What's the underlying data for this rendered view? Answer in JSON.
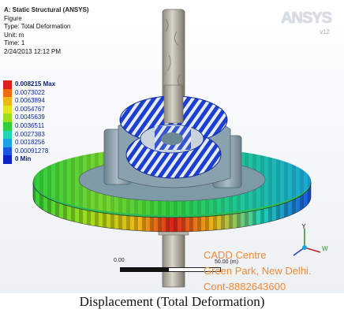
{
  "info": {
    "title": "A: Static Structural (ANSYS)",
    "lines": [
      "Figure",
      "Type: Total Deformation",
      "Unit: m",
      "Time: 1",
      "2/24/2013 12:12 PM"
    ]
  },
  "legend": [
    {
      "label": "0.008215 Max",
      "color": "#e0201b"
    },
    {
      "label": "0.0073022",
      "color": "#f06a10"
    },
    {
      "label": "0.0063894",
      "color": "#f0b812"
    },
    {
      "label": "0.0054767",
      "color": "#e4e41a"
    },
    {
      "label": "0.0045639",
      "color": "#9ee018"
    },
    {
      "label": "0.0036511",
      "color": "#2fcf3a"
    },
    {
      "label": "0.0027383",
      "color": "#1cd6b8"
    },
    {
      "label": "0.0018256",
      "color": "#19a2e6"
    },
    {
      "label": "0.00091278",
      "color": "#1b55e0"
    },
    {
      "label": "0 Min",
      "color": "#0b22c6"
    }
  ],
  "brand": {
    "name": "ANSYS",
    "version": "v12"
  },
  "scale": {
    "min": "0.00",
    "max": "50.00 (m)"
  },
  "triad": {
    "y": "Y",
    "w": "W"
  },
  "watermark": [
    "CADD Centre",
    "Green Park, New Delhi.",
    "Cont-8882643600"
  ],
  "caption": "Displacement (Total Deformation)"
}
